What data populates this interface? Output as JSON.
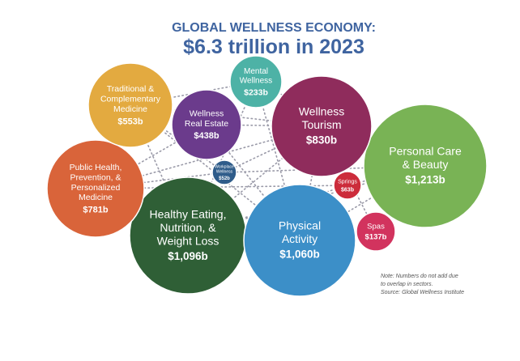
{
  "chart_data": {
    "type": "bubble",
    "title": "GLOBAL WELLNESS ECONOMY:",
    "subtitle": "$6.3 trillion in 2023",
    "units": "billions USD",
    "sectors": [
      {
        "id": "personal-care-beauty",
        "name_lines": [
          "Personal Care",
          "& Beauty"
        ],
        "value": 1213,
        "value_label": "$1,213b",
        "color": "#79b355"
      },
      {
        "id": "healthy-eating",
        "name_lines": [
          "Healthy Eating,",
          "Nutrition, &",
          "Weight Loss"
        ],
        "value": 1096,
        "value_label": "$1,096b",
        "color": "#2f5f36"
      },
      {
        "id": "physical-activity",
        "name_lines": [
          "Physical",
          "Activity"
        ],
        "value": 1060,
        "value_label": "$1,060b",
        "color": "#3c8fc8"
      },
      {
        "id": "wellness-tourism",
        "name_lines": [
          "Wellness",
          "Tourism"
        ],
        "value": 830,
        "value_label": "$830b",
        "color": "#8f2c5c"
      },
      {
        "id": "public-health",
        "name_lines": [
          "Public Health,",
          "Prevention, &",
          "Personalized",
          "Medicine"
        ],
        "value": 781,
        "value_label": "$781b",
        "color": "#d9643a"
      },
      {
        "id": "traditional-medicine",
        "name_lines": [
          "Traditional &",
          "Complementary",
          "Medicine"
        ],
        "value": 553,
        "value_label": "$553b",
        "color": "#e3aa40"
      },
      {
        "id": "wellness-real-estate",
        "name_lines": [
          "Wellness",
          "Real Estate"
        ],
        "value": 438,
        "value_label": "$438b",
        "color": "#6b3b8c"
      },
      {
        "id": "mental-wellness",
        "name_lines": [
          "Mental",
          "Wellness"
        ],
        "value": 233,
        "value_label": "$233b",
        "color": "#4db2a6"
      },
      {
        "id": "spas",
        "name_lines": [
          "Spas"
        ],
        "value": 137,
        "value_label": "$137b",
        "color": "#d2335e"
      },
      {
        "id": "springs",
        "name_lines": [
          "Springs"
        ],
        "value": 63,
        "value_label": "$63b",
        "color": "#cc2c3b"
      },
      {
        "id": "workplace-wellness",
        "name_lines": [
          "Workplace",
          "Wellness"
        ],
        "value": 52,
        "value_label": "$52b",
        "color": "#2f5c8a"
      }
    ],
    "notes": [
      "Note: Numbers do not add due",
      "to overlap in sectors.",
      "Source: Global Wellness Institute"
    ],
    "connector_color": "#9a9aa8"
  }
}
